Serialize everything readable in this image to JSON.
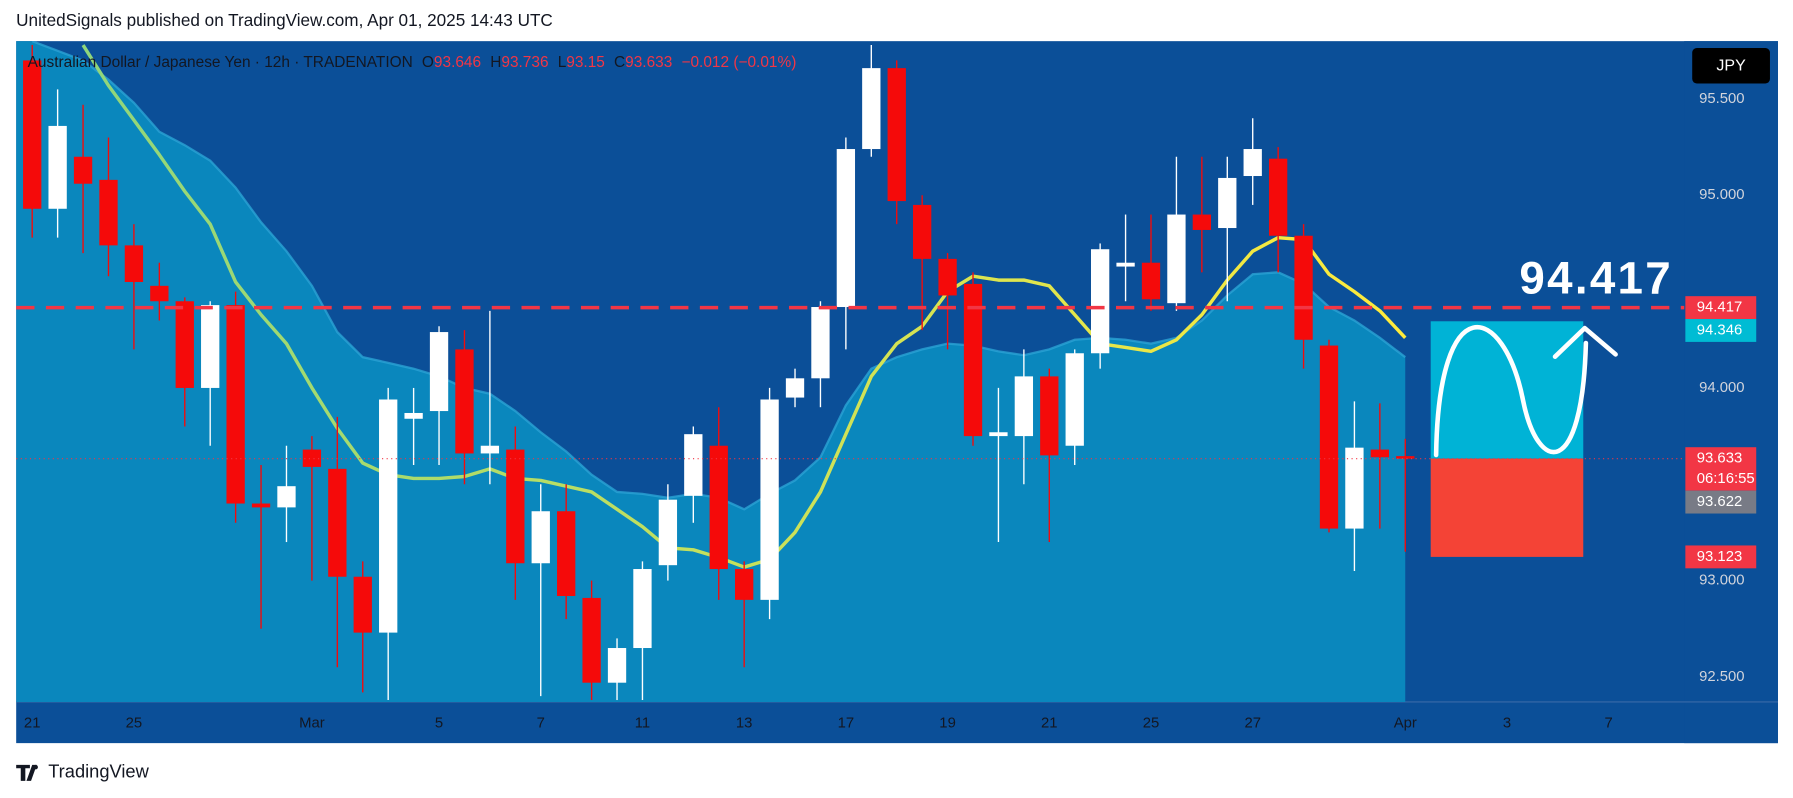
{
  "header": "UnitedSignals published on TradingView.com, Apr 01, 2025 14:43 UTC",
  "brand": "TradingView",
  "currency_button": "JPY",
  "chart_data": {
    "type": "candlestick",
    "legend": {
      "symbol": "Australian Dollar / Japanese Yen · 12h · TRADENATION",
      "keys": [
        "O",
        "H",
        "L",
        "C"
      ],
      "open": 93.646,
      "high": 93.736,
      "low": 93.15,
      "close": 93.633,
      "change": "−0.012 (−0.01%)"
    },
    "x": [
      0,
      1,
      2,
      3,
      4,
      5,
      6,
      7,
      8,
      9,
      10,
      11,
      12,
      13,
      14,
      15,
      16,
      17,
      18,
      19,
      20,
      21,
      22,
      23,
      24,
      25,
      26,
      27,
      28,
      29,
      30,
      31,
      32,
      33,
      34,
      35,
      36,
      37,
      38,
      39,
      40,
      41,
      42,
      43,
      44,
      45,
      46,
      47,
      48,
      49,
      50,
      51,
      52,
      53,
      54
    ],
    "open": [
      95.7,
      94.93,
      95.2,
      95.08,
      94.74,
      94.53,
      94.45,
      94.0,
      94.43,
      93.4,
      93.38,
      93.68,
      93.58,
      93.02,
      92.73,
      93.84,
      93.88,
      94.2,
      93.66,
      93.68,
      93.09,
      93.36,
      92.91,
      92.47,
      92.65,
      93.08,
      93.44,
      93.7,
      93.06,
      92.9,
      93.95,
      94.05,
      94.42,
      95.24,
      95.66,
      94.95,
      94.67,
      94.54,
      93.75,
      93.75,
      94.06,
      93.7,
      94.18,
      94.63,
      94.65,
      94.44,
      94.9,
      94.83,
      95.1,
      95.19,
      94.79,
      94.22,
      93.27,
      93.68,
      93.646
    ],
    "high": [
      95.78,
      95.55,
      95.47,
      95.3,
      94.85,
      94.65,
      94.47,
      94.45,
      94.5,
      93.6,
      93.7,
      93.75,
      93.85,
      93.1,
      94.0,
      94.0,
      94.32,
      94.3,
      94.4,
      93.8,
      93.5,
      93.5,
      93.0,
      92.7,
      93.1,
      93.5,
      93.8,
      93.9,
      93.1,
      94.0,
      94.1,
      94.45,
      95.3,
      95.78,
      95.7,
      95.0,
      94.7,
      94.6,
      94.0,
      94.2,
      94.1,
      94.2,
      94.75,
      94.9,
      94.9,
      95.2,
      95.2,
      95.2,
      95.4,
      95.25,
      94.85,
      94.25,
      93.93,
      93.92,
      93.736
    ],
    "low": [
      94.78,
      94.78,
      94.7,
      94.58,
      94.2,
      94.35,
      93.8,
      93.7,
      93.3,
      92.75,
      93.2,
      93.0,
      92.55,
      92.42,
      92.38,
      93.6,
      93.6,
      93.5,
      93.5,
      92.9,
      92.4,
      92.8,
      92.38,
      92.38,
      92.38,
      93.0,
      93.3,
      92.9,
      92.55,
      92.8,
      93.9,
      93.9,
      94.2,
      95.2,
      94.85,
      94.3,
      94.2,
      93.7,
      93.2,
      93.5,
      93.2,
      93.6,
      94.1,
      94.45,
      94.4,
      94.4,
      94.6,
      94.45,
      94.95,
      94.6,
      94.1,
      93.25,
      93.05,
      93.27,
      93.15
    ],
    "close": [
      94.93,
      95.36,
      95.06,
      94.74,
      94.55,
      94.45,
      94.0,
      94.43,
      93.4,
      93.38,
      93.49,
      93.59,
      93.02,
      92.73,
      93.94,
      93.87,
      94.29,
      93.66,
      93.7,
      93.09,
      93.36,
      92.92,
      92.47,
      92.65,
      93.06,
      93.42,
      93.76,
      93.06,
      92.9,
      93.94,
      94.05,
      94.42,
      95.24,
      95.66,
      94.97,
      94.67,
      94.48,
      93.75,
      93.77,
      94.06,
      93.65,
      94.18,
      94.72,
      94.65,
      94.46,
      94.9,
      94.82,
      95.09,
      95.24,
      94.79,
      94.25,
      93.27,
      93.69,
      93.64,
      93.633
    ],
    "up_color": "#ffffff",
    "down_color": "#f50a0a",
    "series": [
      {
        "type": "area",
        "color": "#0a87bd",
        "values": [
          95.8,
          95.75,
          95.7,
          95.6,
          95.48,
          95.33,
          95.26,
          95.18,
          95.04,
          94.86,
          94.71,
          94.53,
          94.29,
          94.16,
          94.13,
          94.1,
          94.06,
          94.0,
          93.97,
          93.88,
          93.77,
          93.67,
          93.55,
          93.46,
          93.45,
          93.43,
          93.45,
          93.43,
          93.37,
          93.45,
          93.52,
          93.64,
          93.91,
          94.1,
          94.16,
          94.2,
          94.23,
          94.22,
          94.19,
          94.17,
          94.2,
          94.25,
          94.26,
          94.25,
          94.23,
          94.26,
          94.35,
          94.48,
          94.59,
          94.6,
          94.54,
          94.42,
          94.35,
          94.26,
          94.16
        ]
      },
      {
        "type": "line",
        "colors": [
          "#8fd67c",
          "#ffeb3b"
        ],
        "values": [
          null,
          null,
          95.78,
          95.57,
          95.39,
          95.21,
          95.02,
          94.85,
          94.55,
          94.38,
          94.23,
          94.0,
          93.79,
          93.61,
          93.55,
          93.53,
          93.53,
          93.54,
          93.58,
          93.53,
          93.52,
          93.49,
          93.46,
          93.37,
          93.28,
          93.17,
          93.16,
          93.12,
          93.07,
          93.11,
          93.25,
          93.46,
          93.76,
          94.06,
          94.23,
          94.32,
          94.5,
          94.58,
          94.56,
          94.56,
          94.53,
          94.38,
          94.23,
          94.21,
          94.19,
          94.25,
          94.38,
          94.56,
          94.71,
          94.78,
          94.77,
          94.59,
          94.5,
          94.4,
          94.26
        ]
      }
    ],
    "price_lines": [
      {
        "value": 94.417,
        "color": "#f23645",
        "style": "dashed"
      },
      {
        "value": 94.346,
        "color": "#00bcd4"
      },
      {
        "value": 93.633,
        "color": "#f23645",
        "style": "dotted",
        "countdown": "06:16:55"
      },
      {
        "value": 93.622,
        "color": "#787b86"
      },
      {
        "value": 93.123,
        "color": "#f23645"
      }
    ],
    "projection": {
      "x": [
        55,
        61
      ],
      "top": 94.346,
      "entry": 93.633,
      "bottom": 93.123,
      "target_color": "#00b3d6",
      "stop_color": "#f44336"
    },
    "annotation": "94.417",
    "xlim": [
      -0.63,
      64.97
    ],
    "ylim": [
      92.37,
      95.8
    ],
    "xticks": [
      {
        "value": 0,
        "label": "21"
      },
      {
        "value": 4,
        "label": "25"
      },
      {
        "value": 11,
        "label": "Mar"
      },
      {
        "value": 16,
        "label": "5"
      },
      {
        "value": 20,
        "label": "7"
      },
      {
        "value": 24,
        "label": "11"
      },
      {
        "value": 28,
        "label": "13"
      },
      {
        "value": 32,
        "label": "17"
      },
      {
        "value": 36,
        "label": "19"
      },
      {
        "value": 40,
        "label": "21"
      },
      {
        "value": 44,
        "label": "25"
      },
      {
        "value": 48,
        "label": "27"
      },
      {
        "value": 54,
        "label": "Apr"
      },
      {
        "value": 58,
        "label": "3"
      },
      {
        "value": 62,
        "label": "7"
      }
    ],
    "yticks": [
      {
        "value": 95.5,
        "label": "95.500"
      },
      {
        "value": 95,
        "label": "95.000"
      },
      {
        "value": 94,
        "label": "94.000"
      },
      {
        "value": 93,
        "label": "93.000"
      },
      {
        "value": 92.5,
        "label": "92.500"
      }
    ],
    "grid": false
  }
}
